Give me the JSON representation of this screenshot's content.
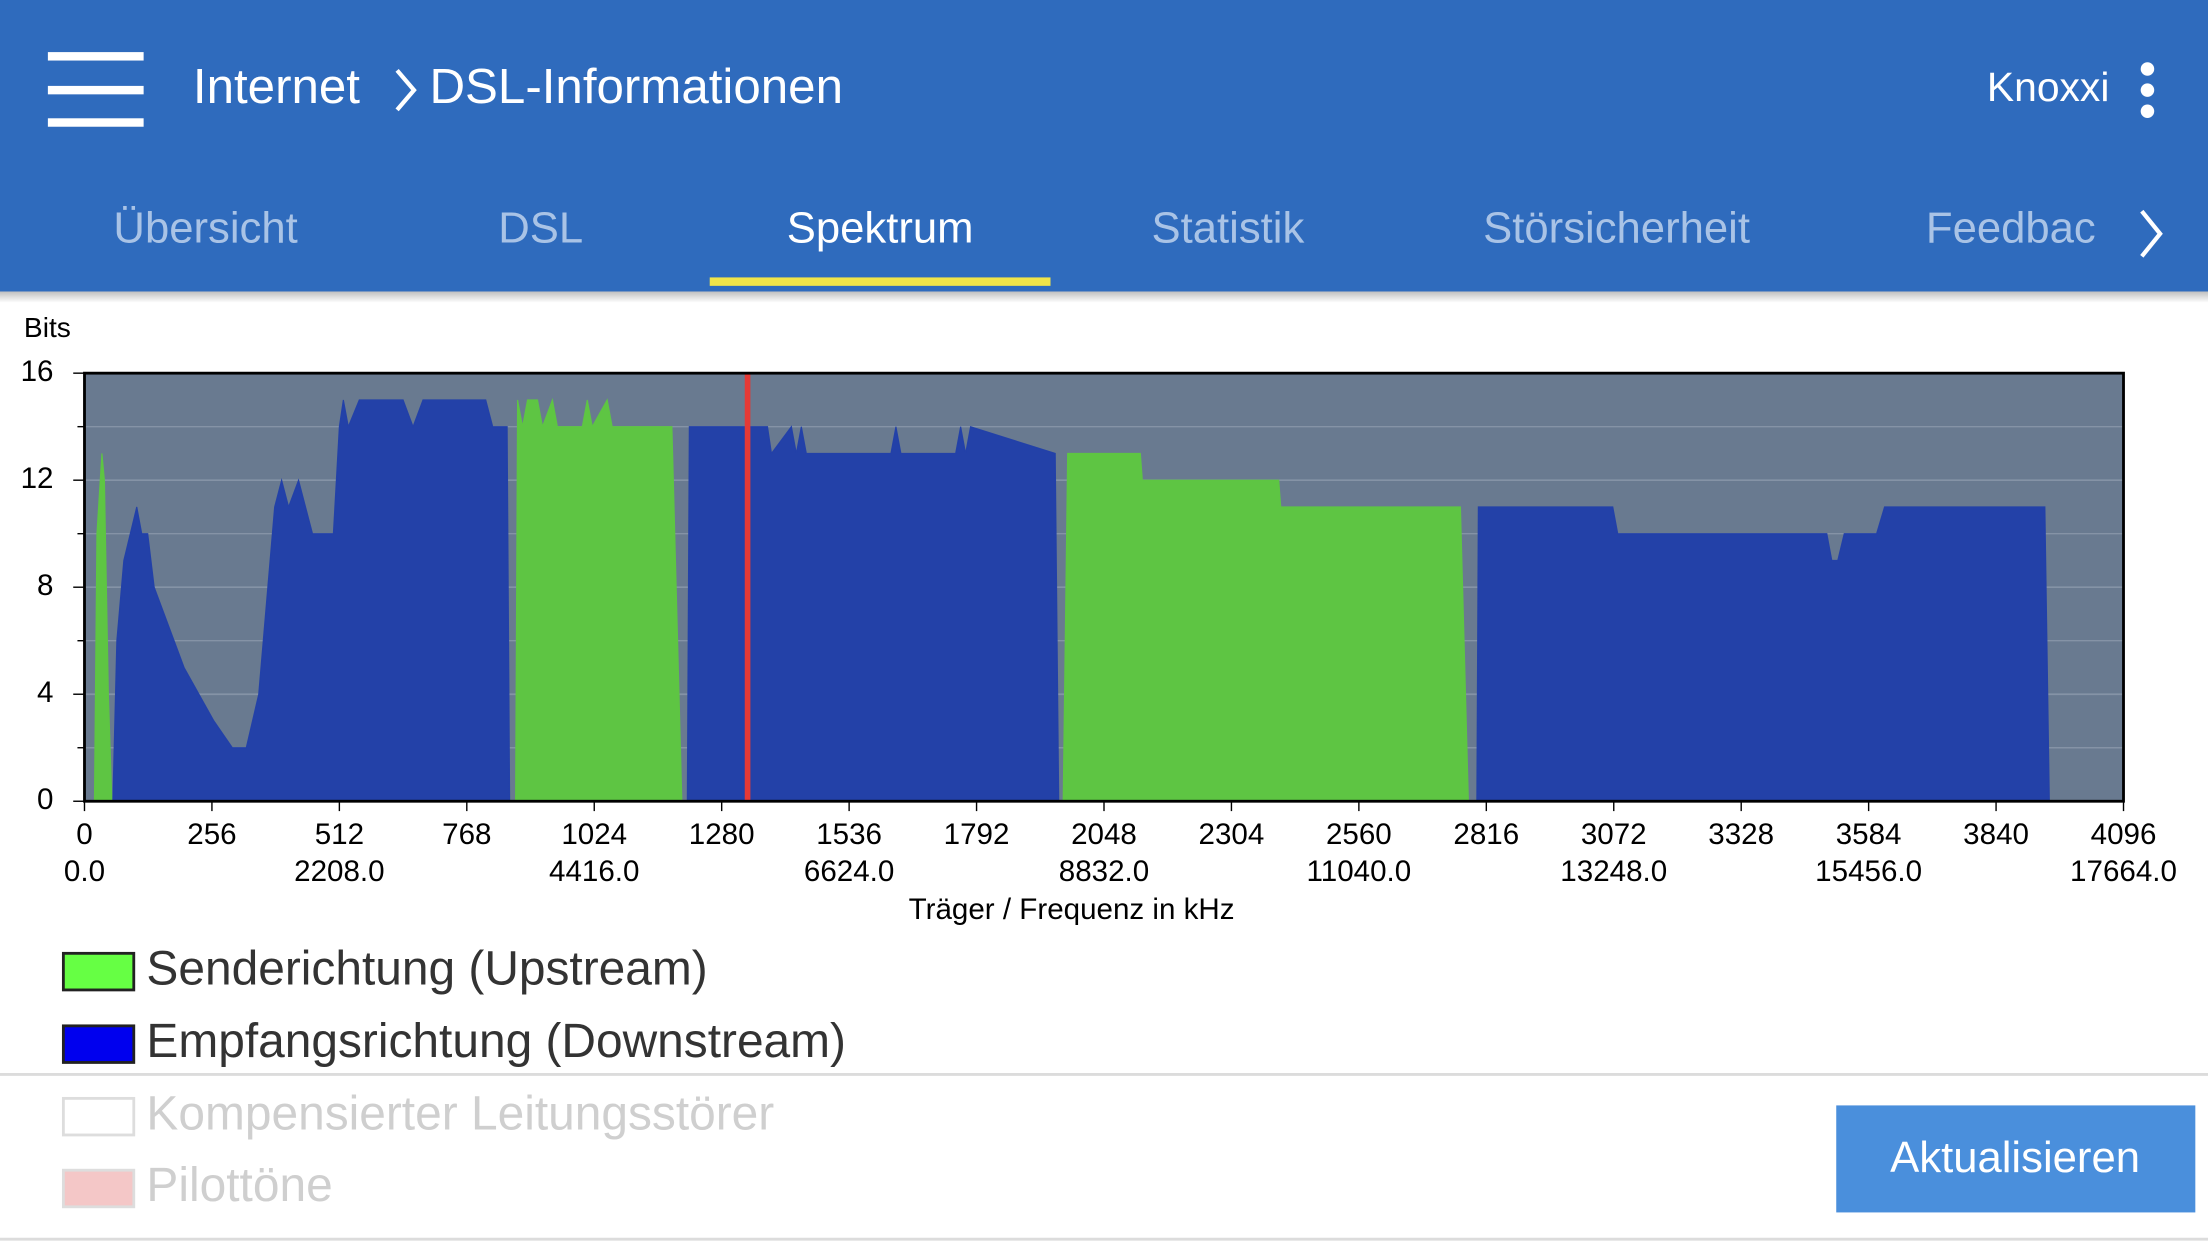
{
  "header": {
    "breadcrumb": [
      "Internet",
      "DSL-Informationen"
    ],
    "user": "Knoxxi"
  },
  "tabs": {
    "items": [
      "Übersicht",
      "DSL",
      "Spektrum",
      "Statistik",
      "Störsicherheit",
      "Feedbac"
    ],
    "active": 2
  },
  "button": "Aktualisieren",
  "chart_data": {
    "type": "area",
    "y_label": "Bits",
    "x_label": "Träger / Frequenz in kHz",
    "xlim": [
      0,
      4096
    ],
    "xticks": [
      0,
      256,
      512,
      768,
      1024,
      1280,
      1536,
      1792,
      2048,
      2304,
      2560,
      2816,
      3072,
      3328,
      3584,
      3840,
      4096
    ],
    "xticks2": [
      {
        "value": 0,
        "label": "0.0"
      },
      {
        "value": 512,
        "label": "2208.0"
      },
      {
        "value": 1024,
        "label": "4416.0"
      },
      {
        "value": 1536,
        "label": "6624.0"
      },
      {
        "value": 2048,
        "label": "8832.0"
      },
      {
        "value": 2560,
        "label": "11040.0"
      },
      {
        "value": 3072,
        "label": "13248.0"
      },
      {
        "value": 3584,
        "label": "15456.0"
      },
      {
        "value": 4096,
        "label": "17664.0"
      }
    ],
    "ylim": [
      0,
      16
    ],
    "yticks": [
      0,
      4,
      8,
      12,
      16
    ],
    "yminor_ticks": [
      2,
      6,
      10,
      14
    ],
    "grid": true,
    "background": "#697a90",
    "series": [
      {
        "name": "Senderichtung (Upstream)",
        "color": "#5ec543",
        "legend_color": "#66ff44",
        "x": [
          20,
          25,
          35,
          40,
          48,
          55,
          null,
          866,
          870,
          880,
          890,
          910,
          920,
          940,
          950,
          1000,
          1010,
          1020,
          1050,
          1060,
          1180,
          1200,
          null,
          1966,
          1975,
          2121,
          2125,
          2399,
          2403,
          2764,
          2780
        ],
        "values": [
          0,
          10,
          13,
          12,
          4,
          0,
          null,
          0,
          15,
          14,
          15,
          15,
          14,
          15,
          14,
          14,
          15,
          14,
          15,
          14,
          14,
          0,
          null,
          0,
          13,
          13,
          12,
          12,
          11,
          11,
          0
        ]
      },
      {
        "name": "Empfangsrichtung (Downstream)",
        "color": "#2341a8",
        "legend_color": "#0000ee",
        "x": [
          57,
          65,
          79,
          105,
          115,
          127,
          140,
          160,
          180,
          200,
          230,
          260,
          297,
          325,
          350,
          382,
          396,
          410,
          430,
          458,
          500,
          512,
          520,
          530,
          552,
          640,
          660,
          680,
          700,
          806,
          820,
          849,
          854,
          null,
          1211,
          1215,
          1372,
          1380,
          1420,
          1430,
          1440,
          1450,
          1470,
          1620,
          1630,
          1640,
          1680,
          1750,
          1760,
          1770,
          1780,
          1950,
          1957,
          null,
          2797,
          2800,
          3070,
          3080,
          3200,
          3260,
          3500,
          3510,
          3522,
          3535,
          3560,
          3600,
          3616,
          3938,
          3947
        ],
        "values": [
          0,
          6,
          9,
          11,
          10,
          10,
          8,
          7,
          6,
          5,
          4,
          3,
          2,
          2,
          4,
          11,
          12,
          11,
          12,
          10,
          10,
          14,
          15,
          14,
          15,
          15,
          14,
          15,
          15,
          15,
          14,
          14,
          0,
          null,
          0,
          14,
          14,
          13,
          14,
          13,
          14,
          13,
          13,
          13,
          14,
          13,
          13,
          13,
          14,
          13,
          14,
          13,
          0,
          null,
          0,
          11,
          11,
          10,
          10,
          10,
          10,
          9,
          9,
          10,
          10,
          10,
          11,
          11,
          0
        ]
      }
    ],
    "markers": [
      {
        "x": 1332,
        "color": "#e53935"
      }
    ],
    "legend_inactive": [
      {
        "name": "Kompensierter Leitungsstörer",
        "color": "#ffffff"
      },
      {
        "name": "Pilottöne",
        "color": "#f4c7c7"
      }
    ]
  }
}
